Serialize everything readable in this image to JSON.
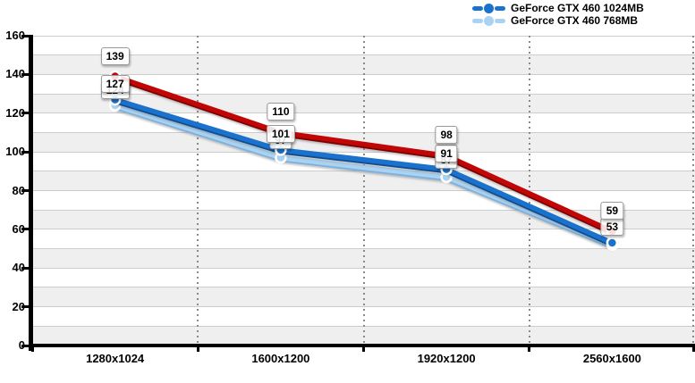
{
  "legend": {
    "items": [
      {
        "label": "GeForce GTX 460 1024MB",
        "color": "#1a72cc"
      },
      {
        "label": "GeForce GTX 460 768MB",
        "color": "#a9d3f2"
      }
    ]
  },
  "chart_data": {
    "type": "line",
    "categories": [
      "1280x1024",
      "1600x1200",
      "1920x1200",
      "2560x1600"
    ],
    "series": [
      {
        "name": "GeForce GTX 460 1024MB",
        "values": [
          127,
          101,
          91,
          53
        ],
        "color": "#1a72cc",
        "edge": "#0f4d92"
      },
      {
        "name": "GeForce GTX 460 768MB",
        "values": [
          124,
          97,
          87,
          52
        ],
        "color": "#a9d3f2",
        "edge": "#7cb0de"
      },
      {
        "name": "",
        "values": [
          139,
          110,
          98,
          59
        ],
        "color": "#c10606",
        "edge": "#7d0000"
      }
    ],
    "ylim": [
      0,
      160
    ],
    "yticks": [
      160,
      140,
      120,
      100,
      80,
      60,
      40,
      20,
      0
    ],
    "band_step": 10,
    "grid": true,
    "legend_position": "top-right",
    "xlabel": "",
    "ylabel": "",
    "colors": {
      "band_gray": "#efefef",
      "band_white": "#ffffff",
      "gridline": "#cccccc",
      "dotted_line": "#8a8a8a",
      "axis": "#000000",
      "label_box_border": "#999999"
    }
  }
}
